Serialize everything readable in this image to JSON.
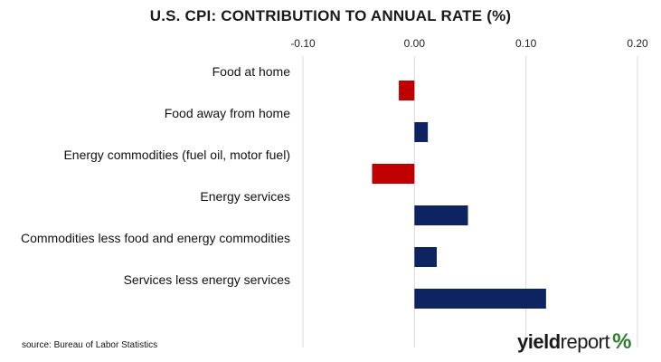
{
  "chart_data": {
    "type": "bar",
    "orientation": "horizontal",
    "title": "U.S. CPI: CONTRIBUTION TO ANNUAL RATE (%)",
    "categories": [
      "Food at home",
      "Food away from home",
      "Energy commodities (fuel oil, motor fuel)",
      "Energy services",
      "Commodities less food and energy commodities",
      "Services less energy services"
    ],
    "values": [
      -0.014,
      0.012,
      -0.038,
      0.048,
      0.02,
      0.118
    ],
    "xlim": [
      -0.1,
      0.2
    ],
    "xticks": [
      -0.1,
      0.0,
      0.1,
      0.2
    ],
    "xtick_labels": [
      "-0.10",
      "0.00",
      "0.10",
      "0.20"
    ],
    "axis_position": "top",
    "grid": true,
    "colors": {
      "positive": "#0d2461",
      "negative": "#c00000",
      "grid": "#d9d9d9"
    }
  },
  "footer": {
    "source": "source: Bureau of Labor Statistics",
    "logo_part1": "yield",
    "logo_part2": "report",
    "logo_symbol": "%"
  }
}
